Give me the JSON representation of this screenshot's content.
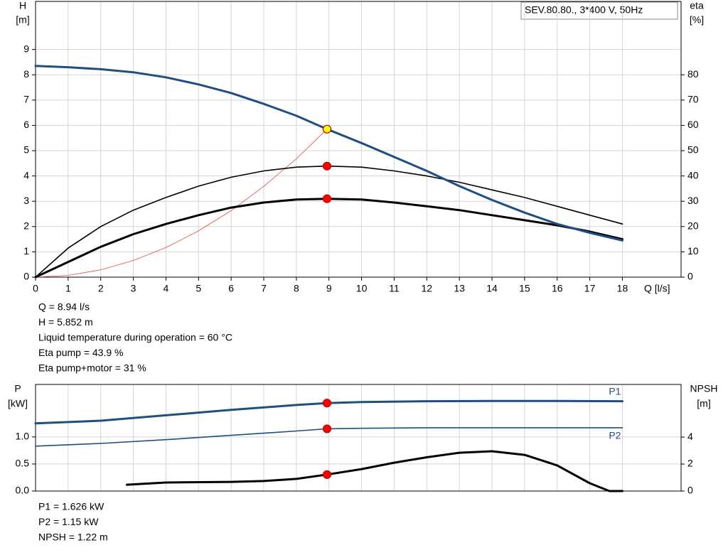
{
  "chart_data": [
    {
      "type": "line",
      "title": "SEV.80.80., 3*400 V, 50Hz",
      "ylabel": [
        "H",
        "[m]"
      ],
      "y2label": [
        "eta",
        "[%]"
      ],
      "xlabel": "Q [l/s]",
      "xlim": [
        0,
        19.8
      ],
      "xticks": [
        0,
        1,
        2,
        3,
        4,
        5,
        6,
        7,
        8,
        9,
        10,
        11,
        12,
        13,
        14,
        15,
        16,
        17,
        18
      ],
      "ylim": [
        0,
        10.9
      ],
      "yticks": [
        0,
        1,
        2,
        3,
        4,
        5,
        6,
        7,
        8,
        9
      ],
      "y2lim": [
        0,
        109
      ],
      "y2ticks": [
        0,
        10,
        20,
        30,
        40,
        50,
        60,
        70,
        80
      ],
      "grid": true,
      "duty_x": 8.94,
      "series": [
        {
          "color": "#e84a4a",
          "width": 0.8,
          "axis": "y",
          "x": [
            0,
            1,
            2,
            3,
            4,
            5,
            6,
            7,
            8,
            8.94
          ],
          "values": [
            0,
            0.07,
            0.29,
            0.66,
            1.17,
            1.83,
            2.63,
            3.59,
            4.68,
            5.852
          ]
        },
        {
          "color": "#000000",
          "width": 1.6,
          "axis": "y2",
          "marker_color": "#ff0000",
          "x": [
            0,
            1,
            2,
            3,
            4,
            5,
            6,
            7,
            8,
            8.94,
            10,
            11,
            12,
            13,
            14,
            15,
            16,
            17,
            18
          ],
          "values": [
            0,
            11.5,
            20,
            26.5,
            31.5,
            36,
            39.5,
            42,
            43.5,
            43.9,
            43.5,
            42,
            40,
            37.5,
            34.5,
            31.5,
            28,
            24.5,
            21
          ]
        },
        {
          "color": "#000000",
          "width": 3,
          "axis": "y2",
          "marker_color": "#ff0000",
          "x": [
            0,
            1,
            2,
            3,
            4,
            5,
            6,
            7,
            8,
            8.94,
            10,
            11,
            12,
            13,
            14,
            15,
            16,
            17,
            18
          ],
          "values": [
            0,
            6,
            12,
            17,
            21,
            24.5,
            27.5,
            29.5,
            30.7,
            31,
            30.7,
            29.5,
            28,
            26.5,
            24.5,
            22.5,
            20.5,
            18,
            15
          ]
        },
        {
          "color": "#1f4e82",
          "width": 3,
          "axis": "y",
          "marker_color": "#ffff00",
          "x": [
            0,
            1,
            2,
            3,
            4,
            5,
            6,
            7,
            8,
            8.94,
            10,
            11,
            12,
            13,
            14,
            15,
            16,
            17,
            18
          ],
          "values": [
            8.35,
            8.3,
            8.22,
            8.1,
            7.9,
            7.62,
            7.28,
            6.85,
            6.38,
            5.852,
            5.3,
            4.75,
            4.2,
            3.6,
            3.05,
            2.55,
            2.1,
            1.75,
            1.45
          ]
        }
      ],
      "info": [
        "Q = 8.94 l/s",
        "H = 5.852 m",
        "Liquid temperature during operation = 60 °C",
        "Eta pump = 43.9 %",
        "Eta pump+motor = 31 %"
      ]
    },
    {
      "type": "line",
      "ylabel": [
        "P",
        "[kW]"
      ],
      "y2label": [
        "NPSH",
        "[m]"
      ],
      "xlim": [
        0,
        19.8
      ],
      "ylim": [
        0,
        1.97
      ],
      "yticks": [
        {
          "value": 0,
          "label": "0.0"
        },
        {
          "value": 0.5,
          "label": "0.5"
        },
        {
          "value": 1,
          "label": "1.0"
        }
      ],
      "y2lim": [
        0,
        7.9
      ],
      "y2ticks": [
        0,
        2,
        4
      ],
      "grid": true,
      "duty_x": 8.94,
      "series": [
        {
          "name": "P1",
          "color": "#1f4e82",
          "width": 3,
          "axis": "y",
          "marker_color": "#ff0000",
          "x": [
            0,
            2,
            4,
            6,
            8,
            8.94,
            10,
            12,
            14,
            16,
            18
          ],
          "values": [
            1.25,
            1.3,
            1.4,
            1.5,
            1.59,
            1.626,
            1.645,
            1.66,
            1.665,
            1.665,
            1.66
          ]
        },
        {
          "name": "P2",
          "color": "#1f4e82",
          "width": 1.6,
          "axis": "y",
          "marker_color": "#ff0000",
          "x": [
            0,
            2,
            4,
            6,
            8,
            8.94,
            10,
            12,
            14,
            16,
            18
          ],
          "values": [
            0.83,
            0.88,
            0.95,
            1.03,
            1.11,
            1.15,
            1.16,
            1.17,
            1.17,
            1.17,
            1.17
          ]
        },
        {
          "color": "#000000",
          "width": 3,
          "axis": "y2",
          "marker_color": "#ff0000",
          "x": [
            2.8,
            4,
            6,
            7,
            8,
            8.94,
            10,
            11,
            12,
            13,
            14,
            15,
            16,
            17,
            17.6,
            18
          ],
          "values": [
            0.47,
            0.63,
            0.68,
            0.74,
            0.9,
            1.22,
            1.63,
            2.1,
            2.5,
            2.84,
            2.95,
            2.68,
            1.9,
            0.58,
            0,
            0
          ]
        }
      ],
      "info": [
        "P1 = 1.626 kW",
        "P2 = 1.15 kW",
        "NPSH = 1.22 m"
      ]
    }
  ]
}
